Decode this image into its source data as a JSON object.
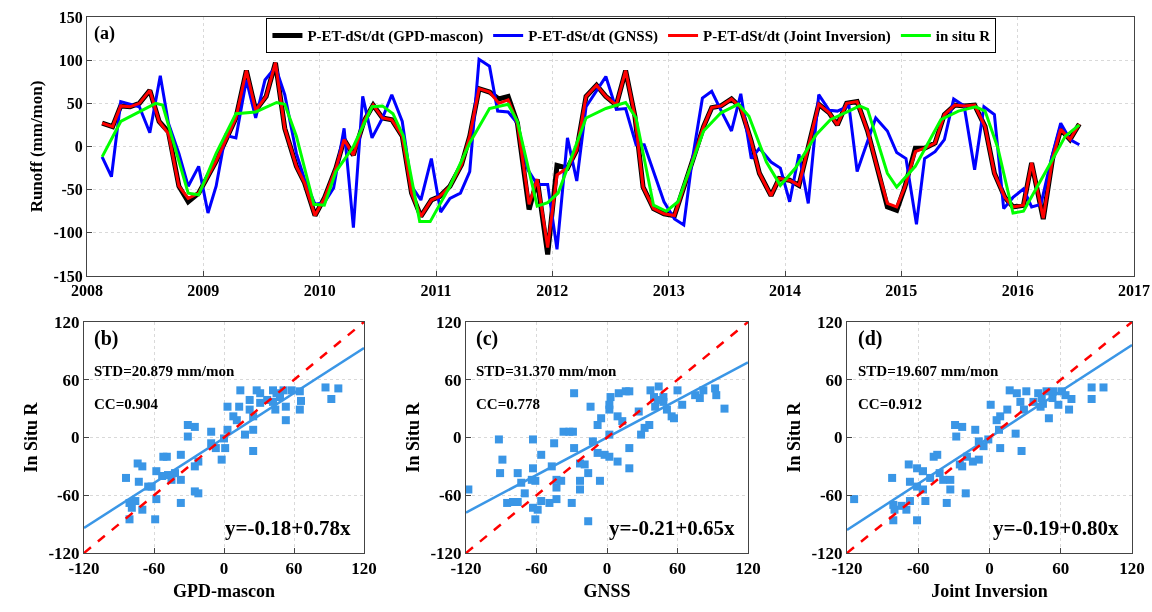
{
  "chart_data": [
    {
      "type": "line",
      "ylabel": "Runoff (mm/mon)",
      "xlim": [
        2008,
        2017
      ],
      "xticks": [
        2008,
        2009,
        2010,
        2011,
        2012,
        2013,
        2014,
        2015,
        2016,
        2017
      ],
      "ylim": [
        -150,
        150
      ],
      "yticks": [
        -150,
        -100,
        -50,
        0,
        50,
        100,
        150
      ],
      "grid": true,
      "legend": "top",
      "annotations": [
        "(a)"
      ],
      "series": [
        {
          "name": "P-ET-dSt/dt (GPD-mascon)",
          "color": "#000000",
          "x": [
            2008.13,
            2008.22,
            2008.29,
            2008.37,
            2008.45,
            2008.54,
            2008.62,
            2008.7,
            2008.79,
            2008.87,
            2008.96,
            2009.11,
            2009.28,
            2009.37,
            2009.45,
            2009.54,
            2009.62,
            2009.7,
            2009.8,
            2009.87,
            2009.96,
            2010.04,
            2010.14,
            2010.21,
            2010.29,
            2010.38,
            2010.46,
            2010.54,
            2010.62,
            2010.71,
            2010.79,
            2010.87,
            2010.96,
            2011.03,
            2011.12,
            2011.22,
            2011.29,
            2011.37,
            2011.46,
            2011.54,
            2011.62,
            2011.7,
            2011.8,
            2011.87,
            2011.96,
            2012.04,
            2012.13,
            2012.21,
            2012.29,
            2012.38,
            2012.46,
            2012.55,
            2012.63,
            2012.71,
            2012.78,
            2012.87,
            2012.96,
            2013.05,
            2013.17,
            2013.3,
            2013.37,
            2013.45,
            2013.54,
            2013.62,
            2013.71,
            2013.78,
            2013.88,
            2013.95,
            2014.04,
            2014.12,
            2014.29,
            2014.38,
            2014.45,
            2014.53,
            2014.62,
            2014.71,
            2014.79,
            2014.88,
            2014.96,
            2015.03,
            2015.12,
            2015.2,
            2015.29,
            2015.37,
            2015.46,
            2015.54,
            2015.63,
            2015.72,
            2015.8,
            2015.89,
            2015.96,
            2016.05,
            2016.12,
            2016.22,
            2016.3,
            2016.37,
            2016.45,
            2016.53
          ],
          "values": [
            27,
            23,
            47,
            46,
            50,
            65,
            29,
            17,
            -46,
            -64,
            -54,
            -17,
            33,
            88,
            42,
            58,
            97,
            21,
            -23,
            -42,
            -80,
            -60,
            -25,
            8,
            -10,
            29,
            48,
            33,
            31,
            12,
            -54,
            -81,
            -62,
            -58,
            -46,
            -21,
            12,
            67,
            63,
            55,
            58,
            27,
            -73,
            -38,
            -125,
            -22,
            -25,
            -4,
            58,
            71,
            58,
            48,
            88,
            35,
            -47,
            -72,
            -78,
            -80,
            -31,
            23,
            45,
            47,
            55,
            45,
            6,
            -31,
            -57,
            -37,
            -39,
            -45,
            49,
            39,
            25,
            50,
            52,
            18,
            -23,
            -70,
            -74,
            -47,
            -2,
            -2,
            4,
            37,
            48,
            47,
            48,
            23,
            -31,
            -59,
            -70,
            -68,
            -19,
            -84,
            -14,
            20,
            8,
            26
          ]
        },
        {
          "name": "P-ET-dSt/dt (GNSS)",
          "color": "#0000ff",
          "x": [
            2008.13,
            2008.21,
            2008.29,
            2008.37,
            2008.45,
            2008.54,
            2008.63,
            2008.7,
            2008.79,
            2008.87,
            2008.96,
            2009.04,
            2009.11,
            2009.19,
            2009.28,
            2009.37,
            2009.45,
            2009.53,
            2009.62,
            2009.7,
            2009.8,
            2009.87,
            2009.96,
            2010.04,
            2010.12,
            2010.21,
            2010.29,
            2010.37,
            2010.45,
            2010.54,
            2010.62,
            2010.71,
            2010.79,
            2010.87,
            2010.96,
            2011.04,
            2011.12,
            2011.21,
            2011.29,
            2011.37,
            2011.46,
            2011.53,
            2011.62,
            2011.7,
            2011.79,
            2011.87,
            2011.96,
            2012.04,
            2012.13,
            2012.21,
            2012.29,
            2012.46,
            2012.55,
            2012.63,
            2012.72,
            2012.79,
            2012.96,
            2013.05,
            2013.13,
            2013.2,
            2013.29,
            2013.37,
            2013.46,
            2013.54,
            2013.62,
            2013.71,
            2013.78,
            2013.88,
            2013.96,
            2014.04,
            2014.12,
            2014.2,
            2014.29,
            2014.38,
            2014.45,
            2014.55,
            2014.62,
            2014.71,
            2014.78,
            2014.88,
            2014.96,
            2015.04,
            2015.13,
            2015.2,
            2015.29,
            2015.37,
            2015.45,
            2015.54,
            2015.63,
            2015.71,
            2015.8,
            2015.88,
            2015.96,
            2016.05,
            2016.12,
            2016.2,
            2016.29,
            2016.37,
            2016.45,
            2016.53
          ],
          "values": [
            -12,
            -35,
            52,
            49,
            46,
            16,
            82,
            27,
            -8,
            -46,
            -23,
            -77,
            -46,
            13,
            10,
            77,
            33,
            77,
            92,
            60,
            -8,
            -38,
            -67,
            -65,
            -48,
            21,
            -94,
            58,
            10,
            33,
            60,
            29,
            -46,
            -62,
            -14,
            -76,
            -60,
            -54,
            -29,
            101,
            93,
            41,
            40,
            27,
            -27,
            -44,
            -44,
            -119,
            10,
            -40,
            46,
            81,
            43,
            44,
            2,
            2,
            -64,
            -84,
            -91,
            -18,
            56,
            64,
            39,
            18,
            61,
            -14,
            -2,
            -18,
            -25,
            -64,
            -9,
            -66,
            60,
            42,
            41,
            47,
            -29,
            6,
            33,
            18,
            -7,
            -14,
            -90,
            -14,
            -6,
            8,
            55,
            47,
            -27,
            46,
            37,
            -72,
            -59,
            -49,
            -70,
            -67,
            -14,
            27,
            8,
            2
          ]
        },
        {
          "name": "P-ET-dSt/dt (Joint Inversion)",
          "color": "#ff0000",
          "x": [
            2008.13,
            2008.22,
            2008.29,
            2008.37,
            2008.45,
            2008.54,
            2008.62,
            2008.7,
            2008.79,
            2008.87,
            2008.96,
            2009.11,
            2009.28,
            2009.37,
            2009.45,
            2009.54,
            2009.62,
            2009.7,
            2009.8,
            2009.87,
            2009.96,
            2010.04,
            2010.14,
            2010.21,
            2010.29,
            2010.38,
            2010.46,
            2010.54,
            2010.62,
            2010.71,
            2010.79,
            2010.87,
            2010.96,
            2011.03,
            2011.12,
            2011.22,
            2011.29,
            2011.37,
            2011.46,
            2011.54,
            2011.62,
            2011.7,
            2011.8,
            2011.87,
            2011.96,
            2012.04,
            2012.13,
            2012.21,
            2012.29,
            2012.38,
            2012.46,
            2012.55,
            2012.63,
            2012.71,
            2012.78,
            2012.87,
            2012.96,
            2013.05,
            2013.17,
            2013.3,
            2013.37,
            2013.45,
            2013.54,
            2013.62,
            2013.71,
            2013.78,
            2013.88,
            2013.95,
            2014.04,
            2014.12,
            2014.29,
            2014.38,
            2014.45,
            2014.53,
            2014.62,
            2014.71,
            2014.79,
            2014.88,
            2014.96,
            2015.03,
            2015.12,
            2015.2,
            2015.29,
            2015.37,
            2015.46,
            2015.54,
            2015.63,
            2015.72,
            2015.8,
            2015.89,
            2015.96,
            2016.05,
            2016.12,
            2016.22,
            2016.3,
            2016.37,
            2016.45,
            2016.53
          ],
          "values": [
            27,
            23,
            47,
            46,
            50,
            65,
            29,
            15,
            -46,
            -60,
            -54,
            -17,
            33,
            88,
            42,
            58,
            97,
            21,
            -23,
            -42,
            -80,
            -60,
            -25,
            8,
            -10,
            29,
            48,
            33,
            31,
            12,
            -54,
            -81,
            -62,
            -58,
            -46,
            -21,
            12,
            67,
            63,
            50,
            54,
            27,
            -67,
            -38,
            -117,
            -33,
            -25,
            -4,
            58,
            71,
            58,
            48,
            88,
            35,
            -47,
            -72,
            -78,
            -80,
            -31,
            23,
            45,
            47,
            55,
            45,
            6,
            -31,
            -57,
            -37,
            -39,
            -45,
            49,
            39,
            25,
            50,
            52,
            18,
            -23,
            -66,
            -70,
            -47,
            -6,
            -2,
            4,
            37,
            48,
            47,
            48,
            23,
            -31,
            -59,
            -70,
            -68,
            -19,
            -83,
            -14,
            20,
            8,
            26
          ]
        },
        {
          "name": "in situ R",
          "color": "#00ff00",
          "x": [
            2008.13,
            2008.29,
            2008.59,
            2008.65,
            2008.87,
            2008.96,
            2009.11,
            2009.28,
            2009.45,
            2009.63,
            2009.7,
            2009.8,
            2009.95,
            2010.04,
            2010.14,
            2010.29,
            2010.45,
            2010.54,
            2010.63,
            2010.72,
            2010.86,
            2010.95,
            2011.12,
            2011.29,
            2011.46,
            2011.62,
            2011.7,
            2011.87,
            2011.96,
            2012.05,
            2012.29,
            2012.46,
            2012.63,
            2012.72,
            2012.87,
            2012.98,
            2013.08,
            2013.3,
            2013.45,
            2013.6,
            2013.69,
            2013.84,
            2013.96,
            2014.09,
            2014.27,
            2014.39,
            2014.58,
            2014.64,
            2014.71,
            2014.88,
            2014.96,
            2015.12,
            2015.34,
            2015.49,
            2015.64,
            2015.72,
            2015.83,
            2015.96,
            2016.05,
            2016.25,
            2016.41,
            2016.53
          ],
          "values": [
            -12,
            29,
            50,
            48,
            -54,
            -56,
            -8,
            38,
            40,
            51,
            49,
            12,
            -67,
            -68,
            -29,
            0,
            46,
            47,
            38,
            12,
            -87,
            -87,
            -46,
            4,
            44,
            49,
            29,
            -69,
            -65,
            -54,
            33,
            44,
            51,
            33,
            -68,
            -75,
            -64,
            18,
            39,
            49,
            35,
            -18,
            -45,
            -25,
            14,
            31,
            43,
            47,
            43,
            -31,
            -47,
            -23,
            31,
            41,
            46,
            41,
            -2,
            -77,
            -75,
            -27,
            12,
            25
          ]
        }
      ]
    },
    {
      "type": "scatter",
      "xlabel": "GPD-mascon",
      "ylabel": "In Situ R",
      "xlim": [
        -120,
        120
      ],
      "ylim": [
        -120,
        120
      ],
      "xticks": [
        -120,
        -60,
        0,
        60,
        120
      ],
      "yticks": [
        -120,
        -60,
        0,
        60,
        120
      ],
      "grid": true,
      "annotations": [
        "(b)",
        "STD=20.879 mm/mon",
        "CC=0.904",
        "y=-0.18+0.78x"
      ],
      "series": [
        {
          "type": "scatter",
          "marker": "square",
          "color": "#3a96e6",
          "x": [
            87,
            98,
            92,
            65,
            66,
            65,
            53,
            53,
            58,
            51,
            45,
            42,
            48,
            42,
            44,
            37,
            31,
            28,
            31,
            22,
            22,
            25,
            25,
            25,
            18,
            14,
            13,
            11,
            8,
            3,
            3,
            0,
            1,
            -2,
            -7,
            -11,
            -11,
            -22,
            -22,
            -25,
            -25,
            -31,
            -31,
            -25,
            -37,
            -37,
            -37,
            -42,
            -45,
            -49,
            -52,
            -53,
            -58,
            -58,
            -59,
            -65,
            -70,
            -73,
            -74,
            -70,
            -76,
            -79,
            -81,
            -81,
            -84,
            -62,
            -48
          ],
          "values": [
            52,
            51,
            40,
            48,
            38,
            29,
            18,
            32,
            49,
            49,
            46,
            49,
            42,
            37,
            29,
            39,
            36,
            49,
            46,
            39,
            29,
            22,
            8,
            -14,
            3,
            49,
            32,
            18,
            22,
            32,
            8,
            -1,
            -11,
            -23,
            -11,
            -6,
            6,
            -25,
            -58,
            -56,
            -30,
            13,
            1,
            11,
            -18,
            -44,
            -68,
            -37,
            -44,
            -20,
            -20,
            -40,
            -35,
            -64,
            -85,
            -51,
            -30,
            -46,
            -27,
            -75,
            -66,
            -73,
            -68,
            -85,
            -42,
            -51,
            -39
          ]
        },
        {
          "type": "line",
          "color": "#3a96e6",
          "x": [
            -120,
            120
          ],
          "values": [
            -94,
            93
          ]
        },
        {
          "type": "line",
          "color": "#ff0000",
          "line_style": "dashed",
          "x": [
            -120,
            120
          ],
          "values": [
            -120,
            120
          ]
        }
      ]
    },
    {
      "type": "scatter",
      "xlabel": "GNSS",
      "ylabel": "In Situ R",
      "xlim": [
        -120,
        120
      ],
      "ylim": [
        -120,
        120
      ],
      "xticks": [
        -120,
        -60,
        0,
        60,
        120
      ],
      "yticks": [
        -120,
        -60,
        0,
        60,
        120
      ],
      "grid": true,
      "annotations": [
        "(c)",
        "STD=31.370 mm/mon",
        "CC=0.778",
        "y=-0.21+0.65x"
      ],
      "series": [
        {
          "type": "scatter",
          "marker": "square",
          "color": "#3a96e6",
          "x": [
            -118,
            -92,
            -89,
            -91,
            -85,
            -80,
            -76,
            -76,
            -73,
            -70,
            -63,
            -63,
            -64,
            -63,
            -61,
            -59,
            -61,
            -56,
            -56,
            -49,
            -47,
            -45,
            -43,
            -43,
            -43,
            -39,
            -37,
            -32,
            -29,
            -30,
            -28,
            -28,
            -23,
            -23,
            -23,
            -19,
            -16,
            -16,
            -14,
            -12,
            -8,
            -8,
            -6,
            -5,
            -2,
            2,
            2,
            2,
            3,
            2,
            9,
            9,
            10,
            13,
            16,
            19,
            19,
            19,
            27,
            29,
            32,
            36,
            37,
            40,
            41,
            44,
            48,
            51,
            55,
            57,
            60,
            64,
            75,
            79,
            82,
            92,
            93,
            100,
            48,
            43
          ],
          "values": [
            -54,
            -2,
            -23,
            -37,
            -68,
            -67,
            -37,
            -67,
            -47,
            -58,
            -2,
            -32,
            -44,
            -73,
            -85,
            -75,
            -45,
            -18,
            -66,
            -68,
            -30,
            -6,
            -44,
            -52,
            -64,
            -45,
            6,
            6,
            6,
            -68,
            46,
            -11,
            -27,
            -45,
            -54,
            -28,
            -37,
            -87,
            32,
            -4,
            -16,
            13,
            -45,
            20,
            -18,
            -20,
            3,
            29,
            42,
            34,
            22,
            -25,
            46,
            17,
            48,
            -11,
            -32,
            48,
            27,
            3,
            10,
            13,
            49,
            42,
            32,
            53,
            42,
            29,
            22,
            20,
            49,
            34,
            44,
            41,
            49,
            51,
            44,
            30,
            37,
            39
          ]
        },
        {
          "type": "line",
          "color": "#3a96e6",
          "x": [
            -120,
            120
          ],
          "values": [
            -78,
            78
          ]
        },
        {
          "type": "line",
          "color": "#ff0000",
          "line_style": "dashed",
          "x": [
            -120,
            120
          ],
          "values": [
            -120,
            120
          ]
        }
      ]
    },
    {
      "type": "scatter",
      "xlabel": "Joint Inversion",
      "ylabel": "In Situ R",
      "xlim": [
        -120,
        120
      ],
      "ylim": [
        -120,
        120
      ],
      "xticks": [
        -120,
        -60,
        0,
        60,
        120
      ],
      "yticks": [
        -120,
        -60,
        0,
        60,
        120
      ],
      "grid": true,
      "annotations": [
        "(d)",
        "STD=19.607 mm/mon",
        "CC=0.912",
        "y=-0.19+0.80x"
      ],
      "series": [
        {
          "type": "scatter",
          "marker": "square",
          "color": "#3a96e6",
          "x": [
            -114,
            -82,
            -81,
            -80,
            -81,
            -74,
            -70,
            -68,
            -67,
            -67,
            -61,
            -61,
            -61,
            -56,
            -56,
            -54,
            -50,
            -47,
            -44,
            -42,
            -39,
            -36,
            -33,
            -33,
            -29,
            -28,
            -23,
            -25,
            -23,
            -20,
            -19,
            -14,
            -12,
            -9,
            -9,
            -5,
            -1,
            1,
            6,
            8,
            9,
            9,
            15,
            17,
            22,
            23,
            26,
            27,
            29,
            31,
            37,
            41,
            43,
            44,
            48,
            50,
            53,
            54,
            58,
            61,
            64,
            67,
            69,
            86,
            86,
            96,
            45
          ],
          "values": [
            -64,
            -42,
            -70,
            -75,
            -86,
            -71,
            -75,
            -28,
            -46,
            -66,
            -32,
            -51,
            -86,
            -35,
            -54,
            -66,
            -42,
            -20,
            -18,
            -37,
            -44,
            -68,
            -44,
            -54,
            13,
            1,
            11,
            -28,
            -30,
            -58,
            -20,
            -25,
            8,
            -23,
            -4,
            -9,
            -2,
            34,
            18,
            8,
            -11,
            22,
            29,
            49,
            4,
            46,
            37,
            -14,
            29,
            48,
            37,
            46,
            32,
            41,
            48,
            20,
            41,
            48,
            34,
            48,
            44,
            29,
            40,
            52,
            40,
            52,
            35
          ]
        },
        {
          "type": "line",
          "color": "#3a96e6",
          "x": [
            -120,
            120
          ],
          "values": [
            -96,
            96
          ]
        },
        {
          "type": "line",
          "color": "#ff0000",
          "line_style": "dashed",
          "x": [
            -120,
            120
          ],
          "values": [
            -120,
            120
          ]
        }
      ]
    }
  ]
}
